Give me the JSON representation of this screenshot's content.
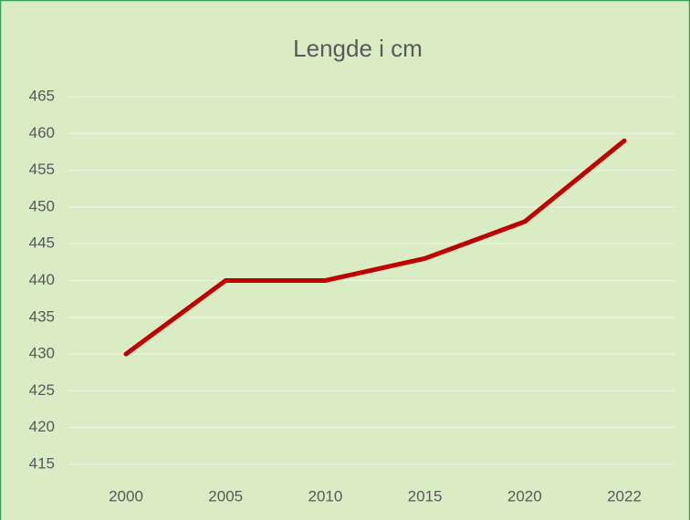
{
  "chart_data": {
    "type": "line",
    "title": "Lengde i cm",
    "categories": [
      "2000",
      "2005",
      "2010",
      "2015",
      "2020",
      "2022"
    ],
    "series": [
      {
        "name": "Lengde i cm",
        "color": "#c00000",
        "values": [
          430,
          440,
          440,
          443,
          448,
          459
        ]
      }
    ],
    "ylim": [
      415,
      465
    ],
    "yticks": [
      415,
      420,
      425,
      430,
      435,
      440,
      445,
      450,
      455,
      460,
      465
    ],
    "grid": true
  }
}
